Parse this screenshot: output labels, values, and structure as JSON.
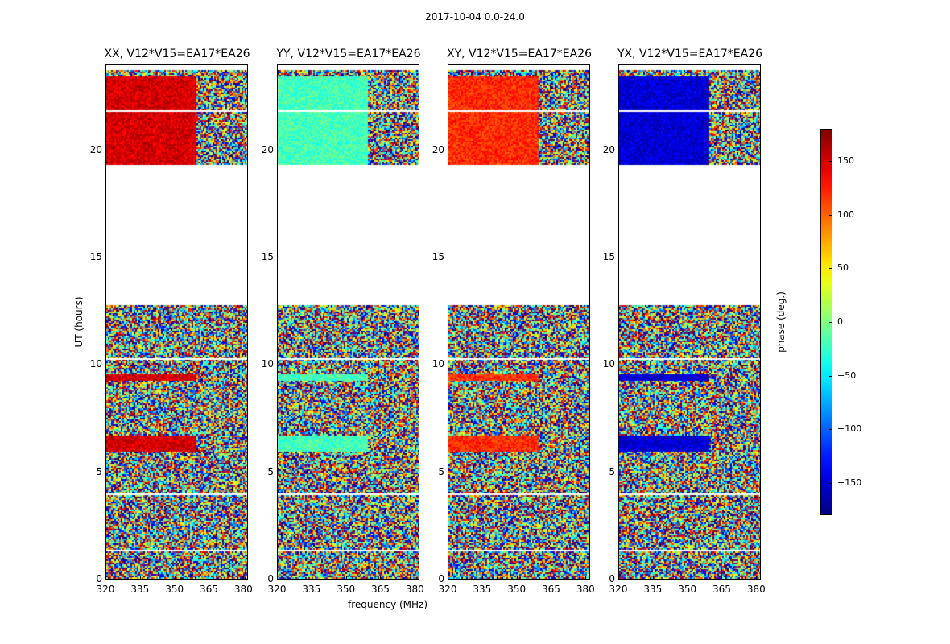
{
  "chart_data": {
    "type": "heatmap",
    "title": "2017-10-04 0.0-24.0",
    "xlabel": "frequency (MHz)",
    "ylabel": "UT (hours)",
    "xlim": [
      320,
      382
    ],
    "ylim": [
      0,
      24
    ],
    "x_ticks": [
      "320",
      "335",
      "350",
      "365",
      "380"
    ],
    "y_ticks": [
      "0",
      "5",
      "10",
      "15",
      "20"
    ],
    "panels": [
      {
        "title": "XX, V12*V15=EA17*EA26",
        "baseline_phase": 150
      },
      {
        "title": "YY, V12*V15=EA17*EA26",
        "baseline_phase": -20
      },
      {
        "title": "XY, V12*V15=EA17*EA26",
        "baseline_phase": 120
      },
      {
        "title": "YX, V12*V15=EA17*EA26",
        "baseline_phase": -150
      }
    ],
    "flagged_ut_ranges": [
      [
        12.8,
        19.4
      ]
    ],
    "colorbar": {
      "label": "phase (deg.)",
      "range": [
        -180,
        180
      ],
      "ticks": [
        "150",
        "100",
        "50",
        "0",
        "−50",
        "−100",
        "−150"
      ],
      "tick_values": [
        150,
        100,
        50,
        0,
        -50,
        -100,
        -150
      ],
      "colormap": "jet"
    }
  }
}
